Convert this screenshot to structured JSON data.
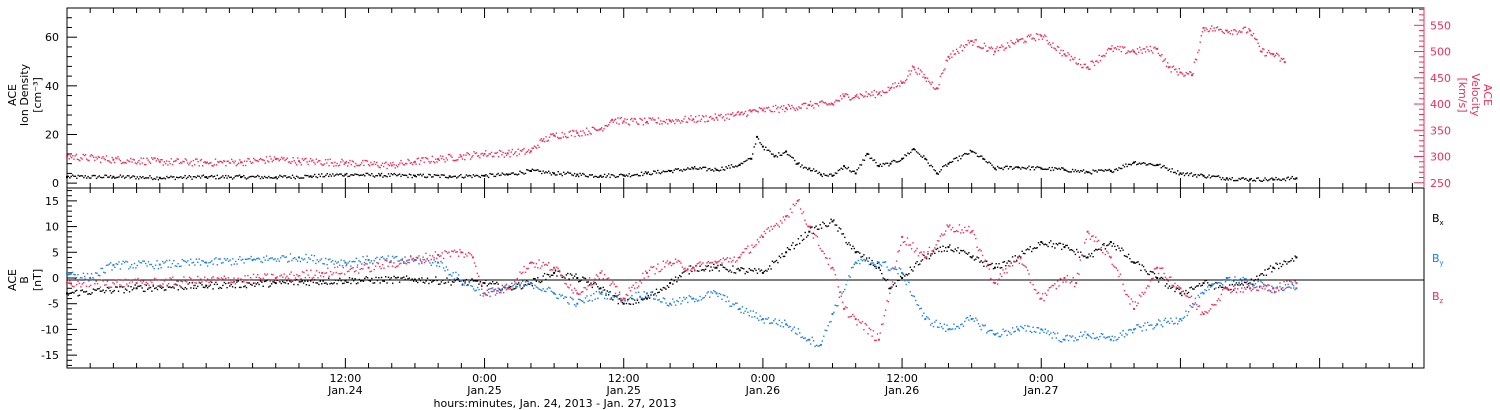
{
  "chart_data": [
    {
      "type": "scatter",
      "panel": "top",
      "ylabel": [
        "ACE",
        "Ion Density",
        "[cm⁻³]"
      ],
      "ylabel_right": [
        "ACE",
        "Velocity",
        "[km/s]"
      ],
      "ylim": [
        -2,
        72
      ],
      "ylim_right": [
        240,
        583
      ],
      "y_ticks": [
        0,
        20,
        40,
        60
      ],
      "y_ticks_right": [
        250,
        300,
        350,
        400,
        450,
        500,
        550
      ],
      "grid": false,
      "series": [
        {
          "name": "",
          "axis": "left",
          "color": "#000000",
          "points": [
            [
              -12,
              2.5
            ],
            [
              -8,
              2.6
            ],
            [
              -4,
              2.2
            ],
            [
              0,
              2.5
            ],
            [
              3,
              2.5
            ],
            [
              6,
              2.4
            ],
            [
              9,
              2.8
            ],
            [
              12,
              3.5
            ],
            [
              15,
              3.2
            ],
            [
              18,
              3.0
            ],
            [
              21,
              2.8
            ],
            [
              24,
              3.0
            ],
            [
              26,
              3.5
            ],
            [
              28,
              5.0
            ],
            [
              30,
              4.0
            ],
            [
              32,
              3.5
            ],
            [
              34,
              3.0
            ],
            [
              36,
              3.2
            ],
            [
              38,
              4.0
            ],
            [
              40,
              5.0
            ],
            [
              42,
              6.0
            ],
            [
              44,
              5.5
            ],
            [
              46,
              7.5
            ],
            [
              47,
              10.0
            ],
            [
              47.5,
              19.0
            ],
            [
              48,
              15.0
            ],
            [
              49,
              11.0
            ],
            [
              50,
              13.0
            ],
            [
              51,
              8.0
            ],
            [
              52,
              6.0
            ],
            [
              53,
              3.5
            ],
            [
              54,
              3.0
            ],
            [
              55,
              7.0
            ],
            [
              56,
              4.0
            ],
            [
              57,
              12.0
            ],
            [
              58,
              7.0
            ],
            [
              59,
              8.0
            ],
            [
              60,
              10.0
            ],
            [
              61,
              14.0
            ],
            [
              62,
              10.0
            ],
            [
              63,
              4.0
            ],
            [
              64,
              8.0
            ],
            [
              66,
              13.0
            ],
            [
              67,
              10.0
            ],
            [
              68,
              6.0
            ],
            [
              70,
              6.5
            ],
            [
              72,
              6.0
            ],
            [
              74,
              5.5
            ],
            [
              76,
              4.5
            ],
            [
              78,
              5.0
            ],
            [
              80,
              8.5
            ],
            [
              82,
              7.5
            ],
            [
              84,
              4.0
            ],
            [
              86,
              3.0
            ],
            [
              88,
              2.0
            ],
            [
              90,
              1.5
            ],
            [
              92,
              1.5
            ],
            [
              94,
              2.0
            ]
          ]
        },
        {
          "name": "",
          "axis": "right",
          "color": "#e8305c",
          "points": [
            [
              -12,
              300
            ],
            [
              -8,
              294
            ],
            [
              -4,
              290
            ],
            [
              0,
              288
            ],
            [
              3,
              289
            ],
            [
              6,
              295
            ],
            [
              8,
              291
            ],
            [
              12,
              288
            ],
            [
              16,
              283
            ],
            [
              18,
              290
            ],
            [
              20,
              295
            ],
            [
              22,
              300
            ],
            [
              24,
              305
            ],
            [
              26,
              306
            ],
            [
              28,
              310
            ],
            [
              29,
              330
            ],
            [
              30,
              340
            ],
            [
              32,
              345
            ],
            [
              34,
              352
            ],
            [
              35,
              370
            ],
            [
              36,
              367
            ],
            [
              38,
              366
            ],
            [
              40,
              368
            ],
            [
              42,
              371
            ],
            [
              44,
              374
            ],
            [
              46,
              380
            ],
            [
              47,
              386
            ],
            [
              48,
              388
            ],
            [
              50,
              392
            ],
            [
              52,
              398
            ],
            [
              54,
              400
            ],
            [
              55,
              415
            ],
            [
              56,
              415
            ],
            [
              58,
              420
            ],
            [
              59,
              430
            ],
            [
              60,
              440
            ],
            [
              61,
              470
            ],
            [
              62,
              450
            ],
            [
              63,
              430
            ],
            [
              64,
              490
            ],
            [
              66,
              520
            ],
            [
              68,
              500
            ],
            [
              70,
              520
            ],
            [
              72,
              530
            ],
            [
              74,
              495
            ],
            [
              76,
              470
            ],
            [
              78,
              505
            ],
            [
              80,
              500
            ],
            [
              82,
              505
            ],
            [
              83,
              470
            ],
            [
              84,
              460
            ],
            [
              85,
              455
            ],
            [
              86,
              545
            ],
            [
              88,
              540
            ],
            [
              90,
              540
            ],
            [
              91,
              500
            ],
            [
              92,
              495
            ],
            [
              93,
              480
            ]
          ]
        }
      ]
    },
    {
      "type": "scatter",
      "panel": "bottom",
      "ylabel": [
        "ACE",
        "B",
        "[nT]"
      ],
      "ylim": [
        -17.5,
        17.5
      ],
      "y_ticks": [
        -15,
        -10,
        -5,
        0,
        5,
        10,
        15
      ],
      "grid": false,
      "reference_line": 0,
      "legend": "right",
      "series": [
        {
          "name": "B",
          "subscript": "x",
          "color": "#000000",
          "points": [
            [
              -12,
              -3
            ],
            [
              -6,
              -2
            ],
            [
              0,
              -1.5
            ],
            [
              6,
              -1
            ],
            [
              12,
              -0.5
            ],
            [
              18,
              -0.3
            ],
            [
              24,
              -1
            ],
            [
              26,
              -2
            ],
            [
              28,
              -1
            ],
            [
              30,
              1
            ],
            [
              32,
              0
            ],
            [
              34,
              -2
            ],
            [
              36,
              -5
            ],
            [
              38,
              -4
            ],
            [
              40,
              -1
            ],
            [
              42,
              2
            ],
            [
              44,
              2
            ],
            [
              46,
              1.5
            ],
            [
              48,
              1
            ],
            [
              50,
              5
            ],
            [
              52,
              9
            ],
            [
              54,
              11
            ],
            [
              56,
              5
            ],
            [
              58,
              2
            ],
            [
              59,
              -2
            ],
            [
              60,
              0
            ],
            [
              62,
              4
            ],
            [
              64,
              6
            ],
            [
              66,
              4
            ],
            [
              68,
              2
            ],
            [
              70,
              4
            ],
            [
              72,
              7
            ],
            [
              74,
              6
            ],
            [
              76,
              4
            ],
            [
              78,
              7
            ],
            [
              80,
              3
            ],
            [
              82,
              0
            ],
            [
              84,
              -3
            ],
            [
              86,
              -1
            ],
            [
              88,
              -2
            ],
            [
              90,
              -1
            ],
            [
              92,
              2
            ],
            [
              94,
              4
            ]
          ]
        },
        {
          "name": "B",
          "subscript": "y",
          "color": "#1f7fe0",
          "points": [
            [
              -12,
              1
            ],
            [
              -10,
              0
            ],
            [
              -8,
              2.5
            ],
            [
              -4,
              2.6
            ],
            [
              0,
              3
            ],
            [
              4,
              3.5
            ],
            [
              8,
              4
            ],
            [
              12,
              3
            ],
            [
              14,
              3.5
            ],
            [
              18,
              3.5
            ],
            [
              20,
              3.0
            ],
            [
              22,
              -0.5
            ],
            [
              24,
              -3
            ],
            [
              26,
              -2
            ],
            [
              28,
              -1
            ],
            [
              30,
              -3
            ],
            [
              32,
              -5
            ],
            [
              34,
              -3
            ],
            [
              36,
              -4
            ],
            [
              38,
              -3
            ],
            [
              40,
              -5
            ],
            [
              42,
              -4
            ],
            [
              44,
              -3
            ],
            [
              46,
              -6
            ],
            [
              48,
              -8
            ],
            [
              50,
              -9
            ],
            [
              52,
              -12
            ],
            [
              53,
              -13
            ],
            [
              54,
              -7
            ],
            [
              56,
              3
            ],
            [
              58,
              3
            ],
            [
              60,
              1
            ],
            [
              62,
              -8
            ],
            [
              64,
              -10
            ],
            [
              66,
              -8
            ],
            [
              68,
              -11
            ],
            [
              70,
              -10
            ],
            [
              72,
              -10
            ],
            [
              74,
              -12
            ],
            [
              76,
              -11
            ],
            [
              78,
              -12
            ],
            [
              80,
              -10
            ],
            [
              82,
              -9
            ],
            [
              84,
              -8
            ],
            [
              86,
              -3
            ],
            [
              88,
              0
            ],
            [
              90,
              -1
            ],
            [
              92,
              -2
            ],
            [
              94,
              -2
            ]
          ]
        },
        {
          "name": "B",
          "subscript": "z",
          "color": "#e8305c",
          "points": [
            [
              -12,
              -1
            ],
            [
              -6,
              -1
            ],
            [
              0,
              -0.5
            ],
            [
              6,
              0
            ],
            [
              10,
              1
            ],
            [
              14,
              2
            ],
            [
              18,
              3.5
            ],
            [
              20,
              4.5
            ],
            [
              22,
              5
            ],
            [
              23,
              4
            ],
            [
              24,
              -3
            ],
            [
              26,
              -2
            ],
            [
              28,
              3
            ],
            [
              30,
              2
            ],
            [
              32,
              -3
            ],
            [
              34,
              1
            ],
            [
              36,
              -4
            ],
            [
              38,
              1
            ],
            [
              40,
              3
            ],
            [
              42,
              2
            ],
            [
              44,
              3
            ],
            [
              46,
              4
            ],
            [
              48,
              8
            ],
            [
              50,
              12
            ],
            [
              51,
              15
            ],
            [
              52,
              10
            ],
            [
              54,
              2
            ],
            [
              55,
              -6
            ],
            [
              56,
              -8
            ],
            [
              58,
              -12
            ],
            [
              60,
              8
            ],
            [
              62,
              4
            ],
            [
              64,
              10
            ],
            [
              66,
              9
            ],
            [
              68,
              -1
            ],
            [
              70,
              4
            ],
            [
              72,
              -4
            ],
            [
              74,
              0
            ],
            [
              75,
              -1
            ],
            [
              76,
              9
            ],
            [
              78,
              4
            ],
            [
              80,
              -6
            ],
            [
              82,
              2
            ],
            [
              84,
              -2
            ],
            [
              86,
              -7
            ],
            [
              88,
              -2
            ],
            [
              90,
              -2
            ],
            [
              92,
              -2
            ],
            [
              94,
              -1
            ]
          ]
        }
      ]
    }
  ],
  "x_axis": {
    "xlim": [
      -12,
      105
    ],
    "major_ticks": [
      {
        "x": 12,
        "time": "12:00",
        "date": "Jan.24"
      },
      {
        "x": 24,
        "time": "0:00",
        "date": "Jan.25"
      },
      {
        "x": 36,
        "time": "12:00",
        "date": "Jan.25"
      },
      {
        "x": 48,
        "time": "0:00",
        "date": "Jan.26"
      },
      {
        "x": 60,
        "time": "12:00",
        "date": "Jan.26"
      },
      {
        "x": 72,
        "time": "0:00",
        "date": "Jan.27"
      }
    ],
    "xlabel": "hours:minutes, Jan. 24, 2013 - Jan. 27, 2013"
  }
}
